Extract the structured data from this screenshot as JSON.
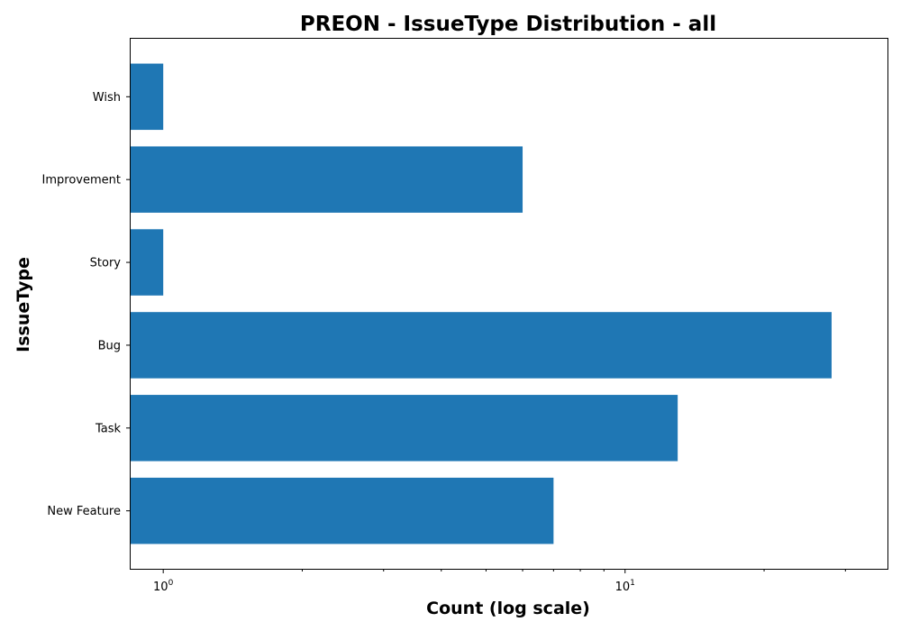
{
  "chart_data": {
    "type": "bar",
    "orientation": "horizontal",
    "title": "PREON - IssueType Distribution - all",
    "xlabel": "Count (log scale)",
    "ylabel": "IssueType",
    "x_scale": "log",
    "xlim": [
      0.85,
      37
    ],
    "x_major_ticks": [
      1,
      10
    ],
    "x_minor_ticks": [
      2,
      3,
      4,
      5,
      6,
      7,
      8,
      9,
      20,
      30
    ],
    "categories": [
      "New Feature",
      "Task",
      "Bug",
      "Story",
      "Improvement",
      "Wish"
    ],
    "values": [
      7,
      13,
      28,
      1,
      6,
      1
    ],
    "bar_color": "#1f77b4",
    "grid": false,
    "legend": "none"
  }
}
